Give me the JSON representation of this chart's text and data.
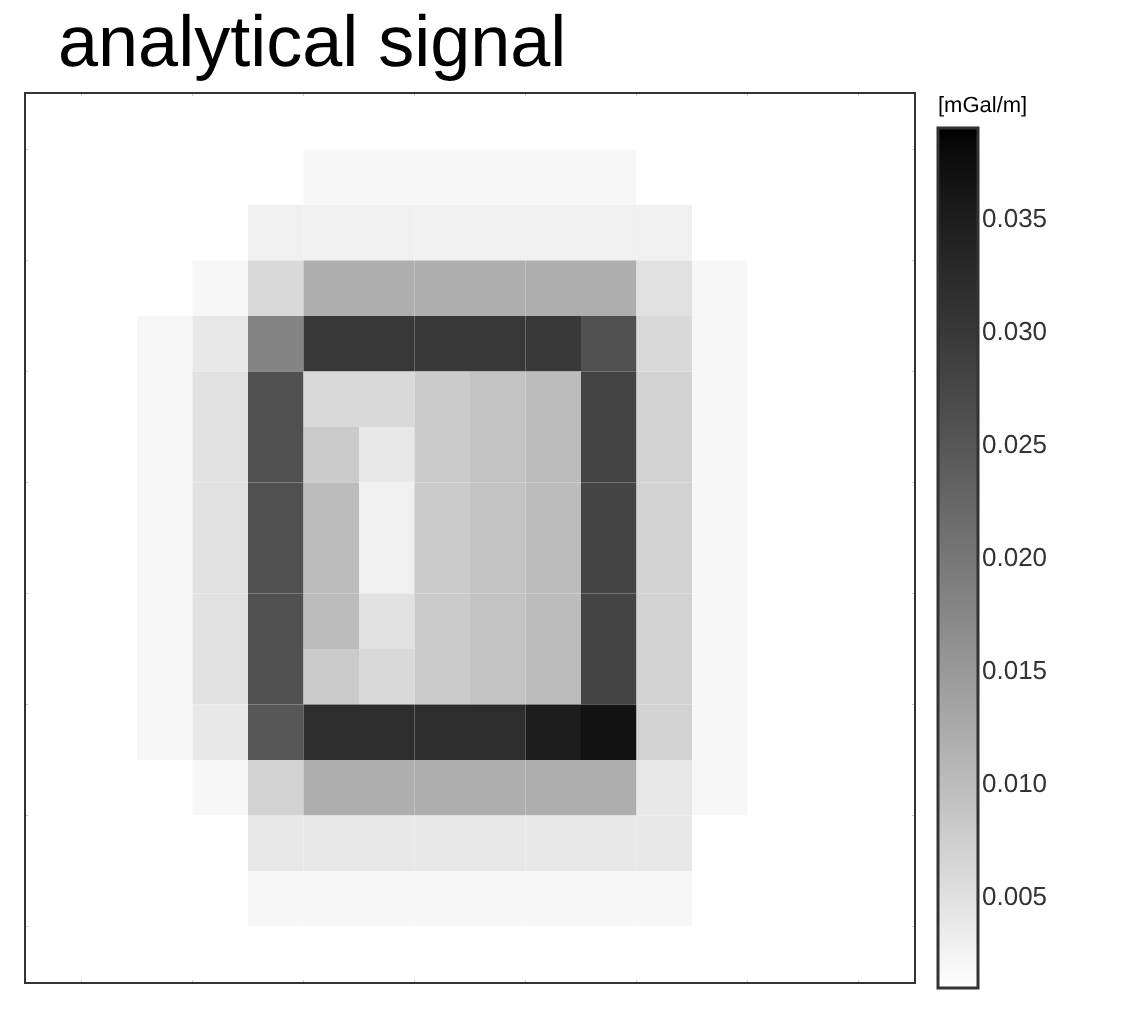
{
  "chart_data": {
    "type": "heatmap",
    "title": "analytical signal",
    "clabel": "[mGal/m]",
    "categories": [
      null,
      null,
      null,
      null,
      null,
      null,
      null,
      null,
      null,
      null,
      null,
      null,
      null,
      null,
      null,
      null
    ],
    "y_categories": [
      null,
      null,
      null,
      null,
      null,
      null,
      null,
      null,
      null,
      null,
      null,
      null,
      null,
      null,
      null,
      null
    ],
    "cells": [
      [
        0.001,
        0.001,
        0.001,
        0.001,
        0.001,
        0.001,
        0.001,
        0.001,
        0.001,
        0.001,
        0.001,
        0.001,
        0.001,
        0.001,
        0.001,
        0.001
      ],
      [
        0.001,
        0.001,
        0.001,
        0.001,
        0.001,
        0.002,
        0.002,
        0.002,
        0.002,
        0.002,
        0.002,
        0.001,
        0.001,
        0.001,
        0.001,
        0.001
      ],
      [
        0.001,
        0.001,
        0.001,
        0.001,
        0.003,
        0.003,
        0.003,
        0.003,
        0.003,
        0.003,
        0.003,
        0.003,
        0.001,
        0.001,
        0.001,
        0.001
      ],
      [
        0.001,
        0.001,
        0.001,
        0.002,
        0.006,
        0.012,
        0.012,
        0.012,
        0.012,
        0.012,
        0.012,
        0.005,
        0.002,
        0.001,
        0.001,
        0.001
      ],
      [
        0.001,
        0.001,
        0.002,
        0.004,
        0.018,
        0.03,
        0.03,
        0.03,
        0.03,
        0.03,
        0.026,
        0.006,
        0.002,
        0.001,
        0.001,
        0.001
      ],
      [
        0.001,
        0.001,
        0.002,
        0.005,
        0.026,
        0.006,
        0.006,
        0.008,
        0.009,
        0.01,
        0.028,
        0.007,
        0.002,
        0.001,
        0.001,
        0.001
      ],
      [
        0.001,
        0.001,
        0.002,
        0.005,
        0.026,
        0.008,
        0.004,
        0.008,
        0.009,
        0.01,
        0.028,
        0.007,
        0.002,
        0.001,
        0.001,
        0.001
      ],
      [
        0.001,
        0.001,
        0.002,
        0.005,
        0.026,
        0.01,
        0.003,
        0.008,
        0.009,
        0.01,
        0.028,
        0.007,
        0.002,
        0.001,
        0.001,
        0.001
      ],
      [
        0.001,
        0.001,
        0.002,
        0.005,
        0.026,
        0.01,
        0.003,
        0.008,
        0.009,
        0.01,
        0.028,
        0.007,
        0.002,
        0.001,
        0.001,
        0.001
      ],
      [
        0.001,
        0.001,
        0.002,
        0.005,
        0.026,
        0.01,
        0.005,
        0.008,
        0.009,
        0.01,
        0.028,
        0.007,
        0.002,
        0.001,
        0.001,
        0.001
      ],
      [
        0.001,
        0.001,
        0.002,
        0.005,
        0.026,
        0.008,
        0.006,
        0.008,
        0.009,
        0.01,
        0.028,
        0.007,
        0.002,
        0.001,
        0.001,
        0.001
      ],
      [
        0.001,
        0.001,
        0.002,
        0.004,
        0.025,
        0.032,
        0.032,
        0.032,
        0.032,
        0.035,
        0.037,
        0.007,
        0.002,
        0.001,
        0.001,
        0.001
      ],
      [
        0.001,
        0.001,
        0.001,
        0.002,
        0.007,
        0.012,
        0.012,
        0.012,
        0.012,
        0.012,
        0.012,
        0.004,
        0.002,
        0.001,
        0.001,
        0.001
      ],
      [
        0.001,
        0.001,
        0.001,
        0.001,
        0.004,
        0.004,
        0.004,
        0.004,
        0.004,
        0.004,
        0.004,
        0.004,
        0.001,
        0.001,
        0.001,
        0.001
      ],
      [
        0.001,
        0.001,
        0.001,
        0.001,
        0.002,
        0.002,
        0.002,
        0.002,
        0.002,
        0.002,
        0.002,
        0.002,
        0.001,
        0.001,
        0.001,
        0.001
      ],
      [
        0.001,
        0.001,
        0.001,
        0.001,
        0.001,
        0.001,
        0.001,
        0.001,
        0.001,
        0.001,
        0.001,
        0.001,
        0.001,
        0.001,
        0.001,
        0.001
      ]
    ],
    "clim": [
      0.001,
      0.039
    ],
    "cticks": [
      0.005,
      {
        "value": 0.01,
        "label": "0.010"
      },
      0.015,
      {
        "value": 0.02,
        "label": "0.020"
      },
      0.025,
      {
        "value": 0.03,
        "label": "0.030"
      },
      0.035
    ]
  }
}
